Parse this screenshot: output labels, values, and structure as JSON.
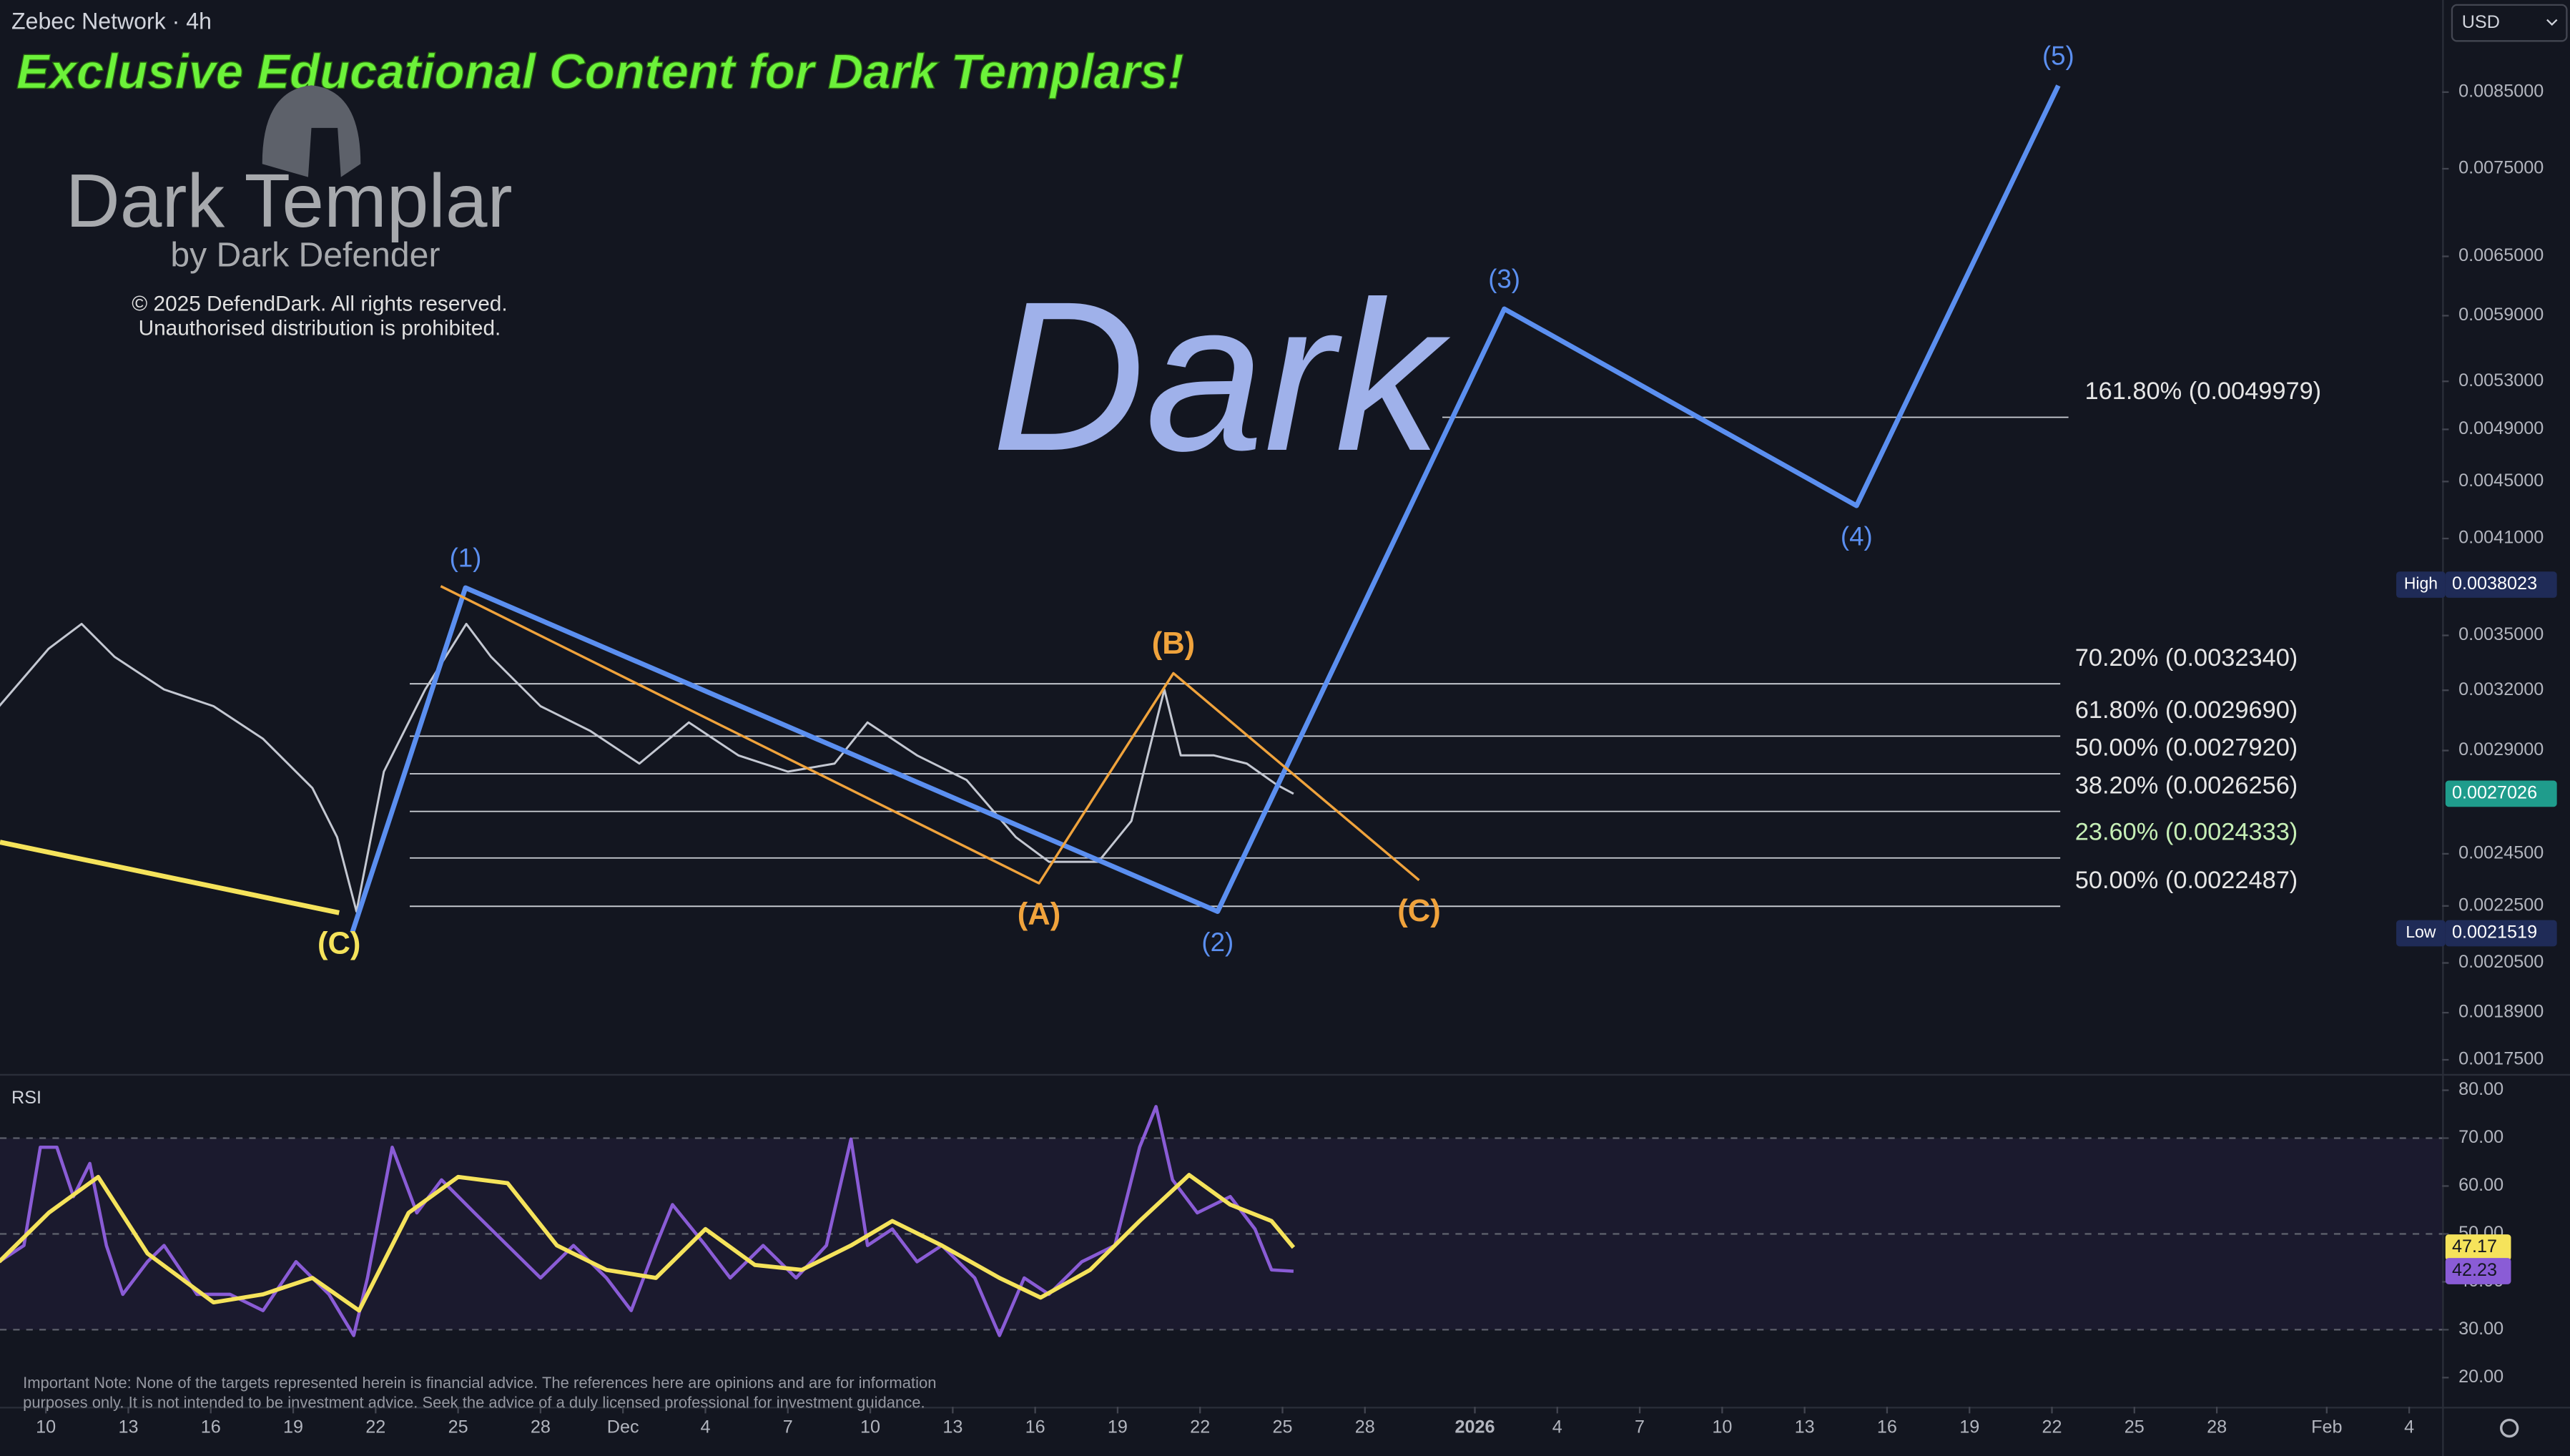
{
  "header": {
    "symbol": "Zebec Network · 4h",
    "currency": "USD"
  },
  "branding": {
    "banner": "Exclusive Educational Content for Dark Templars!",
    "logo": "Dark Templar",
    "byline": "by Dark Defender",
    "copyright": "© 2025 DefendDark. All rights reserved.",
    "notice": "Unauthorised distribution is prohibited.",
    "watermark": "Dark"
  },
  "note": [
    "Important Note: None of the targets represented herein is financial advice. The references here are opinions and are for information",
    "purposes only. It is not intended to be investment advice. Seek the advice of a duly licensed professional for investment guidance."
  ],
  "chart_data": [
    {
      "type": "line",
      "log_scale": true,
      "xlim": [
        -1.67,
        87.2
      ],
      "ylim": [
        0.00171,
        0.00988
      ],
      "xticks": [
        {
          "value": 0,
          "label": "10"
        },
        {
          "value": 3,
          "label": "13"
        },
        {
          "value": 6,
          "label": "16"
        },
        {
          "value": 9,
          "label": "19"
        },
        {
          "value": 12,
          "label": "22"
        },
        {
          "value": 15,
          "label": "25"
        },
        {
          "value": 18,
          "label": "28"
        },
        {
          "value": 21,
          "label": "Dec"
        },
        {
          "value": 24,
          "label": "4"
        },
        {
          "value": 27,
          "label": "7"
        },
        {
          "value": 30,
          "label": "10"
        },
        {
          "value": 33,
          "label": "13"
        },
        {
          "value": 36,
          "label": "16"
        },
        {
          "value": 39,
          "label": "19"
        },
        {
          "value": 42,
          "label": "22"
        },
        {
          "value": 45,
          "label": "25"
        },
        {
          "value": 48,
          "label": "28"
        },
        {
          "value": 52,
          "label": "2026"
        },
        {
          "value": 55,
          "label": "4"
        },
        {
          "value": 58,
          "label": "7"
        },
        {
          "value": 61,
          "label": "10"
        },
        {
          "value": 64,
          "label": "13"
        },
        {
          "value": 67,
          "label": "16"
        },
        {
          "value": 70,
          "label": "19"
        },
        {
          "value": 73,
          "label": "22"
        },
        {
          "value": 76,
          "label": "25"
        },
        {
          "value": 79,
          "label": "28"
        },
        {
          "value": 83,
          "label": "Feb"
        },
        {
          "value": 86,
          "label": "4"
        }
      ],
      "yticks": [
        {
          "value": 0.0085,
          "label": "0.0085000"
        },
        {
          "value": 0.0075,
          "label": "0.0075000"
        },
        {
          "value": 0.0065,
          "label": "0.0065000"
        },
        {
          "value": 0.0059,
          "label": "0.0059000"
        },
        {
          "value": 0.0053,
          "label": "0.0053000"
        },
        {
          "value": 0.0049,
          "label": "0.0049000"
        },
        {
          "value": 0.0045,
          "label": "0.0045000"
        },
        {
          "value": 0.0041,
          "label": "0.0041000"
        },
        {
          "value": 0.0035,
          "label": "0.0035000"
        },
        {
          "value": 0.0032,
          "label": "0.0032000"
        },
        {
          "value": 0.0029,
          "label": "0.0029000"
        },
        {
          "value": 0.00245,
          "label": "0.0024500"
        },
        {
          "value": 0.00225,
          "label": "0.0022500"
        },
        {
          "value": 0.00205,
          "label": "0.0020500"
        },
        {
          "value": 0.00189,
          "label": "0.0018900"
        },
        {
          "value": 0.00175,
          "label": "0.0017500"
        }
      ],
      "series": [
        {
          "color": "#c4c8d2",
          "width": 1.3,
          "x": [
            -1.7,
            0.1,
            1.3,
            2.5,
            4.3,
            6.1,
            7.9,
            9.7,
            10.6,
            11.3,
            12.3,
            13.8,
            15.3,
            16.2,
            18.0,
            19.8,
            21.6,
            23.4,
            25.2,
            27.0,
            28.7,
            29.9,
            31.7,
            33.5,
            35.3,
            36.5,
            38.3,
            39.5,
            40.1,
            40.7,
            41.3,
            42.5,
            43.7,
            44.8,
            45.4
          ],
          "values": [
            0.003118,
            0.003425,
            0.003566,
            0.00338,
            0.003204,
            0.003118,
            0.002956,
            0.002728,
            0.002517,
            0.00223,
            0.002802,
            0.003204,
            0.003566,
            0.00338,
            0.003118,
            0.002995,
            0.002839,
            0.003036,
            0.002877,
            0.002802,
            0.002839,
            0.003036,
            0.002877,
            0.002764,
            0.002517,
            0.002418,
            0.002418,
            0.002585,
            0.002877,
            0.003204,
            0.002877,
            0.002877,
            0.002839,
            0.002742,
            0.0027026
          ]
        },
        {
          "color": "#5b8ff0",
          "width": 3,
          "x": [
            11.15,
            15.27,
            42.64,
            53.07,
            65.89,
            73.23
          ],
          "values": [
            0.002154,
            0.003783,
            0.00223,
            0.005966,
            0.004326,
            0.008592
          ],
          "labels": [
            null,
            "(1)",
            "(2)",
            "(3)",
            "(4)",
            "(5)"
          ]
        },
        {
          "color": "#f0a33c",
          "width": 1.5,
          "x": [
            14.37,
            36.14,
            41.03,
            49.97
          ],
          "values": [
            0.003793,
            0.002335,
            0.00329,
            0.002347
          ],
          "labels": [
            null,
            "(A)",
            "(B)",
            "(C)"
          ]
        },
        {
          "color": "#f5e35b",
          "width": 3,
          "x": [
            -1.67,
            10.67
          ],
          "values": [
            0.002497,
            0.002225
          ],
          "labels": [
            null,
            "(C)"
          ]
        }
      ],
      "fib_levels": [
        {
          "label": "161.80% (0.0049979)",
          "value": 0.0049979,
          "color": "#e6e6e6"
        },
        {
          "label": "70.20% (0.0032340)",
          "value": 0.003234,
          "color": "#e6e6e6"
        },
        {
          "label": "61.80% (0.0029690)",
          "value": 0.002969,
          "color": "#e6e6e6"
        },
        {
          "label": "50.00% (0.0027920)",
          "value": 0.002792,
          "color": "#e6e6e6"
        },
        {
          "label": "38.20% (0.0026256)",
          "value": 0.0026256,
          "color": "#e6e6e6"
        },
        {
          "label": "23.60% (0.0024333)",
          "value": 0.0024333,
          "color": "#c6efb6"
        },
        {
          "label": "50.00% (0.0022487)",
          "value": 0.0022487,
          "color": "#e6e6e6"
        }
      ],
      "markers": [
        {
          "label": "High",
          "value": 0.0038023,
          "color": "#1f2b57"
        },
        {
          "label": "Low",
          "value": 0.0021519,
          "color": "#1f2b57"
        },
        {
          "value": 0.0027026,
          "color": "#1f9c8c"
        }
      ]
    },
    {
      "type": "line",
      "title": "RSI",
      "xlim": [
        -1.67,
        87.2
      ],
      "ylim": [
        13.9,
        83.4
      ],
      "yticks": [
        {
          "value": 80,
          "label": "80.00"
        },
        {
          "value": 70,
          "label": "70.00"
        },
        {
          "value": 60,
          "label": "60.00"
        },
        {
          "value": 50,
          "label": "50.00"
        },
        {
          "value": 40,
          "label": "40.00"
        },
        {
          "value": 30,
          "label": "30.00"
        },
        {
          "value": 20,
          "label": "20.00"
        }
      ],
      "band": [
        30,
        70
      ],
      "dashed": [
        70,
        50,
        30
      ],
      "series": [
        {
          "color": "#8a5cd6",
          "width": 2,
          "x": [
            -1.7,
            -0.8,
            -0.2,
            0.4,
            1.0,
            1.6,
            2.2,
            2.8,
            3.7,
            4.3,
            5.5,
            6.7,
            7.9,
            9.1,
            10.3,
            11.2,
            11.7,
            12.6,
            13.5,
            14.4,
            15.6,
            16.8,
            18.0,
            19.2,
            20.4,
            21.3,
            22.2,
            22.8,
            24.0,
            24.9,
            26.1,
            27.3,
            28.4,
            29.3,
            29.9,
            30.8,
            31.7,
            32.6,
            33.8,
            34.7,
            35.6,
            36.5,
            37.7,
            38.9,
            39.8,
            40.4,
            41.0,
            41.9,
            43.1,
            44.0,
            44.6,
            45.4
          ],
          "values": [
            44.2,
            47.6,
            68.1,
            68.1,
            57.8,
            64.7,
            47.6,
            37.4,
            44.2,
            47.6,
            37.4,
            37.4,
            34.0,
            44.2,
            37.4,
            28.8,
            40.8,
            68.1,
            54.4,
            61.3,
            54.4,
            47.6,
            40.8,
            47.6,
            40.8,
            34.0,
            47.6,
            56.1,
            47.6,
            40.8,
            47.6,
            40.8,
            47.6,
            69.8,
            47.6,
            51.0,
            44.2,
            47.6,
            40.8,
            28.8,
            40.8,
            37.4,
            44.2,
            47.6,
            68.1,
            76.6,
            61.3,
            54.4,
            57.8,
            51.0,
            42.5,
            42.23
          ]
        },
        {
          "color": "#f5e35b",
          "width": 2.5,
          "x": [
            -1.7,
            0.1,
            1.9,
            3.7,
            6.1,
            7.9,
            9.7,
            11.4,
            13.2,
            15.0,
            16.8,
            18.6,
            20.4,
            22.2,
            24.0,
            25.8,
            27.5,
            29.3,
            30.8,
            32.6,
            34.7,
            36.2,
            38.0,
            39.8,
            41.6,
            43.1,
            44.6,
            45.4
          ],
          "values": [
            44.2,
            54.4,
            61.9,
            45.9,
            35.7,
            37.4,
            40.8,
            34.0,
            54.4,
            61.9,
            60.6,
            47.6,
            42.5,
            40.8,
            51.0,
            43.5,
            42.5,
            47.6,
            52.7,
            47.6,
            40.8,
            36.7,
            42.5,
            52.7,
            62.3,
            56.1,
            52.7,
            47.17
          ]
        }
      ],
      "markers": [
        {
          "value": 47.17,
          "color": "#f5e35b"
        },
        {
          "value": 42.23,
          "color": "#8a5cd6"
        }
      ]
    }
  ]
}
